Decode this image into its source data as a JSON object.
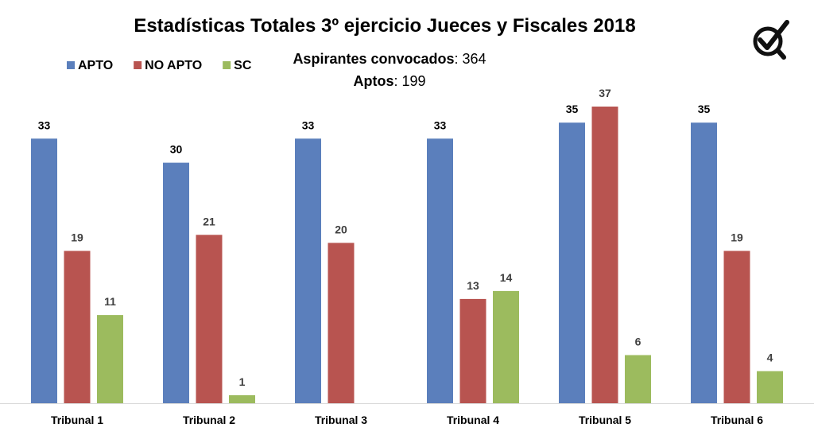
{
  "colors": {
    "apto": "#5b7fbc",
    "no_apto": "#b85450",
    "sc": "#9cbb5e",
    "axis": "#d9d9d9"
  },
  "header": {
    "title": "Estadísticas Totales 3º ejercicio Jueces y Fiscales 2018",
    "convocados_label": "Aspirantes convocados",
    "convocados_value": ": 364",
    "aptos_label": "Aptos",
    "aptos_value": ": 199",
    "logo_icon": "check-circle-icon"
  },
  "chart_data": {
    "type": "bar",
    "title": "Estadísticas Totales 3º ejercicio Jueces y Fiscales 2018",
    "categories": [
      "Tribunal 1",
      "Tribunal 2",
      "Tribunal 3",
      "Tribunal 4",
      "Tribunal 5",
      "Tribunal 6"
    ],
    "series": [
      {
        "name": "APTO",
        "color": "#5b7fbc",
        "values": [
          33,
          30,
          33,
          33,
          35,
          35
        ]
      },
      {
        "name": "NO APTO",
        "color": "#b85450",
        "values": [
          19,
          21,
          20,
          13,
          37,
          19
        ]
      },
      {
        "name": "SC",
        "color": "#9cbb5e",
        "values": [
          11,
          1,
          null,
          14,
          6,
          4
        ]
      }
    ],
    "ylim": [
      0,
      37
    ],
    "grid": false,
    "legend": "top-left",
    "data_labels": true
  }
}
